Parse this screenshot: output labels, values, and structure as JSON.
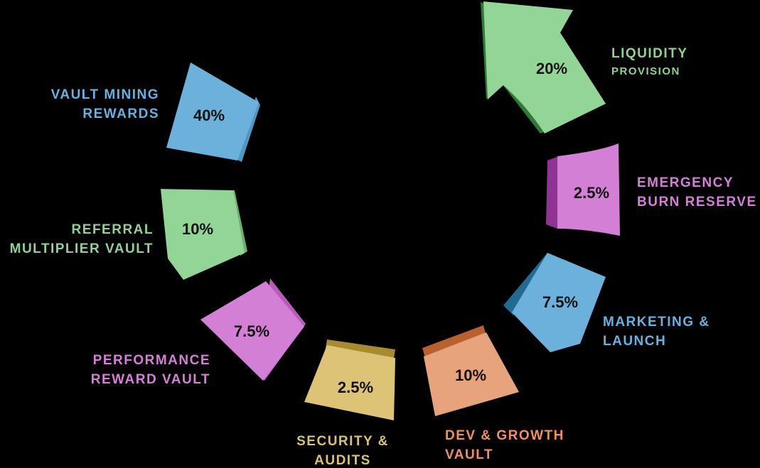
{
  "colors": {
    "green": "#93d497",
    "green_dark": "#2f7a36",
    "blue": "#6cb1dc",
    "blue_dark": "#216a92",
    "purple": "#d47fd6",
    "purple_dark": "#8f3494",
    "tan": "#dcc376",
    "tan_dark": "#a88a2f",
    "orange": "#e6a37c",
    "orange_dark": "#b8602e",
    "label_green": "#8fd293",
    "label_blue": "#63b3e3",
    "label_purple": "#d67ed8",
    "label_tan": "#dcc170",
    "label_orange": "#f09060"
  },
  "segments": [
    {
      "id": "liquidity",
      "percent": "20%",
      "label_lines": [
        "LIQUIDITY",
        "PROVISION"
      ]
    },
    {
      "id": "emergency",
      "percent": "2.5%",
      "label_lines": [
        "EMERGENCY",
        "BURN RESERVE"
      ]
    },
    {
      "id": "marketing",
      "percent": "7.5%",
      "label_lines": [
        "MARKETING &",
        "LAUNCH"
      ]
    },
    {
      "id": "dev",
      "percent": "10%",
      "label_lines": [
        "DEV & GROWTH",
        "VAULT"
      ]
    },
    {
      "id": "security",
      "percent": "2.5%",
      "label_lines": [
        "SECURITY &",
        "AUDITS"
      ]
    },
    {
      "id": "performance",
      "percent": "7.5%",
      "label_lines": [
        "PERFORMANCE",
        "REWARD VAULT"
      ]
    },
    {
      "id": "referral",
      "percent": "10%",
      "label_lines": [
        "REFERRAL",
        "MULTIPLIER VAULT"
      ]
    },
    {
      "id": "vault",
      "percent": "40%",
      "label_lines": [
        "VAULT MINING",
        "REWARDS"
      ]
    }
  ]
}
